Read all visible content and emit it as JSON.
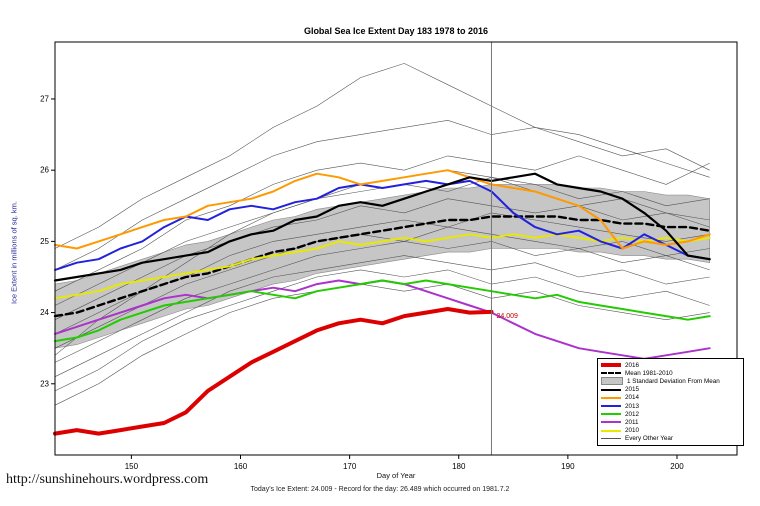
{
  "title": "Global Sea Ice Extent Day 183 1978 to 2016",
  "footer": {
    "url": "http://sunshinehours.wordpress.com",
    "caption": "Today's Ice Extent: 24.009 - Record for the day: 26.489 which occurred on 1981.7.2"
  },
  "chart_data": {
    "type": "line",
    "title": "Global Sea Ice Extent Day 183 1978 to 2016",
    "xlabel": "Day of Year",
    "ylabel": "Ice Extent in millions of sq. km.",
    "xlim": [
      143,
      205.5
    ],
    "ylim": [
      22.0,
      27.8
    ],
    "x_ticks": [
      150,
      160,
      170,
      180,
      190,
      200
    ],
    "y_ticks": [
      23,
      24,
      25,
      26,
      27
    ],
    "grid": false,
    "legend_position": "bottom-right",
    "vline_x": 183,
    "annotation": {
      "x": 183,
      "y": 23.95,
      "text": "24.009",
      "color": "#cc0000"
    },
    "x": [
      143,
      145,
      147,
      149,
      151,
      153,
      155,
      157,
      159,
      161,
      163,
      165,
      167,
      169,
      171,
      173,
      175,
      177,
      179,
      181,
      183,
      185,
      187,
      189,
      191,
      193,
      195,
      197,
      199,
      201,
      203
    ],
    "band": {
      "name": "1 Standard Deviation From Mean",
      "center": "Mean 1981-2010",
      "sd": 0.45,
      "fill": "#c6c6c6"
    },
    "series": [
      {
        "name": "Mean 1981-2010",
        "color": "#000000",
        "width": 2.4,
        "dash": "7 4",
        "values": [
          23.95,
          24.0,
          24.1,
          24.2,
          24.3,
          24.4,
          24.5,
          24.55,
          24.65,
          24.75,
          24.85,
          24.9,
          25.0,
          25.05,
          25.1,
          25.15,
          25.2,
          25.25,
          25.3,
          25.3,
          25.35,
          25.35,
          25.35,
          25.35,
          25.3,
          25.3,
          25.25,
          25.25,
          25.2,
          25.2,
          25.15
        ]
      },
      {
        "name": "2010",
        "color": "#e8e800",
        "width": 2,
        "values": [
          24.2,
          24.25,
          24.3,
          24.4,
          24.45,
          24.5,
          24.55,
          24.6,
          24.65,
          24.75,
          24.8,
          24.85,
          24.9,
          25.0,
          24.95,
          25.0,
          25.05,
          25.0,
          25.05,
          25.1,
          25.05,
          25.1,
          25.05,
          25.1,
          25.05,
          25.0,
          25.05,
          25.0,
          25.05,
          25.0,
          25.05
        ]
      },
      {
        "name": "2011",
        "color": "#aa33cc",
        "width": 2,
        "values": [
          23.7,
          23.8,
          23.9,
          24.0,
          24.1,
          24.2,
          24.25,
          24.2,
          24.25,
          24.3,
          24.35,
          24.3,
          24.4,
          24.45,
          24.4,
          24.45,
          24.4,
          24.3,
          24.2,
          24.1,
          24.0,
          23.85,
          23.7,
          23.6,
          23.5,
          23.45,
          23.4,
          23.35,
          23.4,
          23.45,
          23.5
        ]
      },
      {
        "name": "2012",
        "color": "#22cc00",
        "width": 2,
        "values": [
          23.6,
          23.65,
          23.75,
          23.9,
          24.0,
          24.1,
          24.15,
          24.2,
          24.25,
          24.3,
          24.25,
          24.2,
          24.3,
          24.35,
          24.4,
          24.45,
          24.4,
          24.45,
          24.4,
          24.35,
          24.3,
          24.25,
          24.2,
          24.25,
          24.15,
          24.1,
          24.05,
          24.0,
          23.95,
          23.9,
          23.95
        ]
      },
      {
        "name": "2013",
        "color": "#2222dd",
        "width": 2,
        "values": [
          24.6,
          24.7,
          24.75,
          24.9,
          25.0,
          25.2,
          25.35,
          25.3,
          25.45,
          25.5,
          25.45,
          25.55,
          25.6,
          25.75,
          25.8,
          25.75,
          25.8,
          25.85,
          25.8,
          25.85,
          25.7,
          25.4,
          25.2,
          25.1,
          25.15,
          25.0,
          24.9,
          25.1,
          24.95,
          24.8,
          24.75
        ]
      },
      {
        "name": "2014",
        "color": "#ff9900",
        "width": 2,
        "values": [
          24.95,
          24.9,
          25.0,
          25.1,
          25.2,
          25.3,
          25.35,
          25.5,
          25.55,
          25.6,
          25.7,
          25.85,
          25.95,
          25.9,
          25.8,
          25.85,
          25.9,
          25.95,
          26.0,
          25.9,
          25.8,
          25.75,
          25.7,
          25.6,
          25.5,
          25.3,
          24.9,
          25.0,
          24.95,
          25.0,
          25.1
        ]
      },
      {
        "name": "2015",
        "color": "#000000",
        "width": 2.2,
        "values": [
          24.45,
          24.5,
          24.55,
          24.6,
          24.7,
          24.75,
          24.8,
          24.85,
          25.0,
          25.1,
          25.15,
          25.3,
          25.35,
          25.5,
          25.55,
          25.5,
          25.6,
          25.7,
          25.8,
          25.9,
          25.85,
          25.9,
          25.95,
          25.8,
          25.75,
          25.7,
          25.6,
          25.4,
          25.15,
          24.8,
          24.75
        ]
      },
      {
        "name": "2016",
        "color": "#dd0000",
        "width": 4,
        "values": [
          22.3,
          22.35,
          22.3,
          22.35,
          22.4,
          22.45,
          22.6,
          22.9,
          23.1,
          23.3,
          23.45,
          23.6,
          23.75,
          23.85,
          23.9,
          23.85,
          23.95,
          24.0,
          24.05,
          24.0,
          24.009
        ]
      }
    ],
    "background": {
      "name": "Every Other Year",
      "color": "#555555",
      "x": [
        143,
        147,
        151,
        155,
        159,
        163,
        167,
        171,
        175,
        179,
        183,
        187,
        191,
        195,
        199,
        203
      ],
      "lines": [
        [
          24.9,
          25.2,
          25.6,
          25.9,
          26.2,
          26.6,
          26.9,
          27.3,
          27.5,
          27.2,
          26.9,
          26.6,
          26.5,
          26.3,
          26.1,
          25.9
        ],
        [
          24.6,
          24.9,
          25.3,
          25.6,
          25.9,
          26.2,
          26.4,
          26.5,
          26.6,
          26.7,
          26.5,
          26.6,
          26.4,
          26.2,
          26.3,
          26.0
        ],
        [
          24.3,
          24.6,
          24.9,
          25.3,
          25.5,
          25.8,
          26.0,
          26.1,
          26.0,
          26.2,
          26.1,
          26.0,
          26.2,
          26.0,
          25.8,
          26.1
        ],
        [
          24.1,
          24.4,
          24.7,
          25.0,
          25.2,
          25.4,
          25.6,
          25.7,
          25.8,
          25.7,
          25.9,
          25.8,
          25.6,
          25.7,
          25.5,
          25.6
        ],
        [
          23.9,
          24.2,
          24.5,
          24.8,
          25.0,
          25.2,
          25.3,
          25.5,
          25.4,
          25.6,
          25.5,
          25.4,
          25.5,
          25.3,
          25.4,
          25.2
        ],
        [
          23.7,
          24.0,
          24.3,
          24.5,
          24.8,
          25.0,
          25.1,
          25.2,
          25.3,
          25.2,
          25.4,
          25.3,
          25.2,
          25.1,
          25.0,
          25.1
        ],
        [
          23.5,
          23.8,
          24.1,
          24.4,
          24.6,
          24.8,
          25.0,
          25.1,
          25.0,
          25.2,
          25.1,
          25.0,
          24.9,
          25.0,
          24.8,
          24.9
        ],
        [
          23.3,
          23.6,
          23.9,
          24.2,
          24.4,
          24.6,
          24.8,
          24.9,
          25.0,
          24.9,
          25.0,
          24.8,
          24.9,
          24.7,
          24.8,
          24.6
        ],
        [
          23.1,
          23.4,
          23.7,
          24.0,
          24.3,
          24.5,
          24.6,
          24.7,
          24.8,
          24.7,
          24.6,
          24.7,
          24.5,
          24.6,
          24.4,
          24.5
        ],
        [
          22.9,
          23.2,
          23.6,
          23.9,
          24.1,
          24.3,
          24.5,
          24.6,
          24.5,
          24.6,
          24.4,
          24.5,
          24.3,
          24.2,
          24.3,
          24.1
        ],
        [
          22.7,
          23.0,
          23.4,
          23.7,
          24.0,
          24.2,
          24.3,
          24.4,
          24.3,
          24.4,
          24.2,
          24.3,
          24.1,
          24.0,
          23.9,
          24.0
        ],
        [
          23.4,
          23.9,
          24.3,
          24.7,
          25.1,
          25.4,
          25.6,
          25.8,
          25.9,
          26.0,
          25.9,
          25.7,
          25.5,
          25.6,
          25.4,
          25.3
        ]
      ]
    },
    "legend": [
      {
        "label": "2016",
        "type": "line",
        "color": "#dd0000",
        "width": 4
      },
      {
        "label": "Mean 1981-2010",
        "type": "line",
        "color": "#000000",
        "width": 2,
        "dash": true
      },
      {
        "label": "1 Standard Deviation From Mean",
        "type": "band",
        "color": "#c6c6c6"
      },
      {
        "label": "2015",
        "type": "line",
        "color": "#000000",
        "width": 2
      },
      {
        "label": "2014",
        "type": "line",
        "color": "#ff9900",
        "width": 2
      },
      {
        "label": "2013",
        "type": "line",
        "color": "#2222dd",
        "width": 2
      },
      {
        "label": "2012",
        "type": "line",
        "color": "#22cc00",
        "width": 2
      },
      {
        "label": "2011",
        "type": "line",
        "color": "#aa33cc",
        "width": 2
      },
      {
        "label": "2010",
        "type": "line",
        "color": "#e8e800",
        "width": 2
      },
      {
        "label": "Every Other Year",
        "type": "line",
        "color": "#555555",
        "width": 1
      }
    ]
  }
}
